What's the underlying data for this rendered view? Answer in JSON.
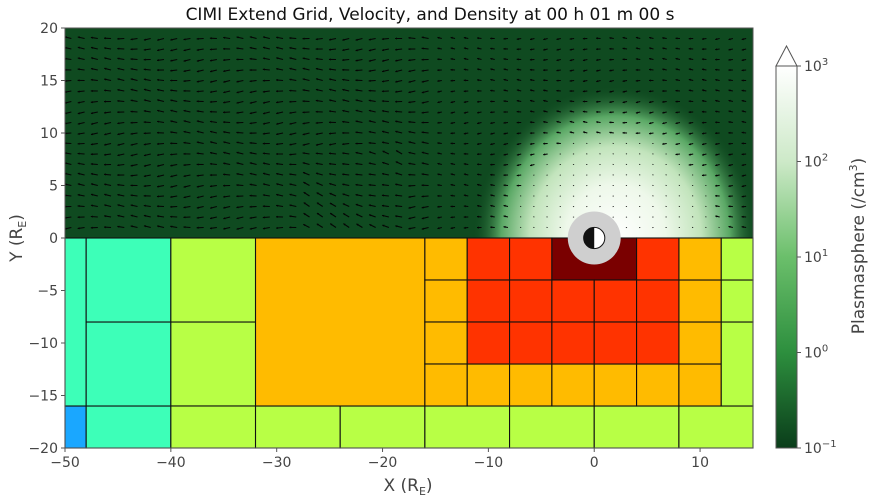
{
  "chart_data": {
    "type": "heatmap",
    "title": "CIMI Extend Grid, Velocity, and Density at 00 h 01 m 00 s",
    "xlabel": "X (R",
    "xlabel_sub": "E",
    "ylabel": "Y (R",
    "ylabel_sub": "E",
    "label_close": ")",
    "xlim": [
      -50,
      15
    ],
    "ylim": [
      -20,
      20
    ],
    "x_ticks": [
      -50,
      -40,
      -30,
      -20,
      -10,
      0,
      10
    ],
    "x_tick_labels": [
      "−50",
      "−40",
      "−30",
      "−20",
      "−10",
      "0",
      "10"
    ],
    "y_ticks": [
      -20,
      -15,
      -10,
      -5,
      0,
      5,
      10,
      15,
      20
    ],
    "y_tick_labels": [
      "−20",
      "−15",
      "−10",
      "−5",
      "0",
      "5",
      "10",
      "15",
      "20"
    ],
    "grid": false,
    "colorbar": {
      "label": "Plasmasphere (/cm",
      "label_sup": "3",
      "label_close": ")",
      "scale": "log",
      "range": [
        0.1,
        1000
      ],
      "extend": "max",
      "ticks": [
        {
          "value": 0.1,
          "base": "10",
          "exp": "−1"
        },
        {
          "value": 1,
          "base": "10",
          "exp": "0"
        },
        {
          "value": 10,
          "base": "10",
          "exp": "1"
        },
        {
          "value": 100,
          "base": "10",
          "exp": "2"
        },
        {
          "value": 1000,
          "base": "10",
          "exp": "3"
        }
      ],
      "colors": [
        "#0a3d1a",
        "#2d8f3e",
        "#6bbf6b",
        "#cde9c8",
        "#ffffff"
      ]
    },
    "density_panel": {
      "x_range": [
        -50,
        15
      ],
      "y_range": [
        0,
        20
      ],
      "background": "#0f4a20",
      "plasmasphere_center": [
        2,
        0
      ],
      "plasmasphere_radius": 10,
      "peak_density": 1000
    },
    "level_colors": {
      "0": "#1aa7ff",
      "1": "#3dffb8",
      "2": "#b8ff45",
      "3": "#ffbb00",
      "4": "#ff3300",
      "5": "#7a0000"
    },
    "grid_blocks": [
      {
        "x": [
          -50,
          -48
        ],
        "y": [
          -20,
          -16
        ],
        "level": 0
      },
      {
        "x": [
          -50,
          -48
        ],
        "y": [
          -16,
          0
        ],
        "level": 1
      },
      {
        "x": [
          -48,
          -40
        ],
        "y": [
          -20,
          -16
        ],
        "level": 1
      },
      {
        "x": [
          -48,
          -40
        ],
        "y": [
          -16,
          -8
        ],
        "level": 1
      },
      {
        "x": [
          -48,
          -40
        ],
        "y": [
          -8,
          0
        ],
        "level": 1
      },
      {
        "x": [
          -40,
          -32
        ],
        "y": [
          -16,
          -8
        ],
        "level": 2
      },
      {
        "x": [
          -40,
          -32
        ],
        "y": [
          -8,
          0
        ],
        "level": 2
      },
      {
        "x": [
          -40,
          -32
        ],
        "y": [
          -20,
          -16
        ],
        "level": 2
      },
      {
        "x": [
          -32,
          -24
        ],
        "y": [
          -20,
          -16
        ],
        "level": 2
      },
      {
        "x": [
          -24,
          -16
        ],
        "y": [
          -20,
          -16
        ],
        "level": 2
      },
      {
        "x": [
          -16,
          -8
        ],
        "y": [
          -20,
          -16
        ],
        "level": 2
      },
      {
        "x": [
          -8,
          0
        ],
        "y": [
          -20,
          -16
        ],
        "level": 2
      },
      {
        "x": [
          0,
          8
        ],
        "y": [
          -20,
          -16
        ],
        "level": 2
      },
      {
        "x": [
          8,
          15
        ],
        "y": [
          -20,
          -16
        ],
        "level": 2
      },
      {
        "x": [
          -32,
          -16
        ],
        "y": [
          -16,
          0
        ],
        "level": 3
      },
      {
        "x": [
          -16,
          -12
        ],
        "y": [
          -4,
          0
        ],
        "level": 3
      },
      {
        "x": [
          -16,
          -12
        ],
        "y": [
          -8,
          -4
        ],
        "level": 3
      },
      {
        "x": [
          -16,
          -12
        ],
        "y": [
          -12,
          -8
        ],
        "level": 3
      },
      {
        "x": [
          -16,
          -12
        ],
        "y": [
          -16,
          -12
        ],
        "level": 3
      },
      {
        "x": [
          -12,
          -8
        ],
        "y": [
          -16,
          -12
        ],
        "level": 3
      },
      {
        "x": [
          -8,
          -4
        ],
        "y": [
          -16,
          -12
        ],
        "level": 3
      },
      {
        "x": [
          -4,
          0
        ],
        "y": [
          -16,
          -12
        ],
        "level": 3
      },
      {
        "x": [
          0,
          4
        ],
        "y": [
          -16,
          -12
        ],
        "level": 3
      },
      {
        "x": [
          4,
          8
        ],
        "y": [
          -16,
          -12
        ],
        "level": 3
      },
      {
        "x": [
          8,
          12
        ],
        "y": [
          -16,
          -12
        ],
        "level": 3
      },
      {
        "x": [
          8,
          12
        ],
        "y": [
          -12,
          -8
        ],
        "level": 3
      },
      {
        "x": [
          8,
          12
        ],
        "y": [
          -8,
          -4
        ],
        "level": 3
      },
      {
        "x": [
          8,
          12
        ],
        "y": [
          -4,
          0
        ],
        "level": 3
      },
      {
        "x": [
          12,
          15
        ],
        "y": [
          -16,
          -8
        ],
        "level": 2
      },
      {
        "x": [
          12,
          15
        ],
        "y": [
          -8,
          -4
        ],
        "level": 2
      },
      {
        "x": [
          12,
          15
        ],
        "y": [
          -4,
          0
        ],
        "level": 2
      },
      {
        "x": [
          -12,
          -8
        ],
        "y": [
          -4,
          0
        ],
        "level": 4
      },
      {
        "x": [
          -8,
          -4
        ],
        "y": [
          -4,
          0
        ],
        "level": 4
      },
      {
        "x": [
          -4,
          4
        ],
        "y": [
          -4,
          0
        ],
        "level": 5
      },
      {
        "x": [
          4,
          8
        ],
        "y": [
          -4,
          0
        ],
        "level": 4
      },
      {
        "x": [
          -12,
          -8
        ],
        "y": [
          -8,
          -4
        ],
        "level": 4
      },
      {
        "x": [
          -8,
          -4
        ],
        "y": [
          -8,
          -4
        ],
        "level": 4
      },
      {
        "x": [
          -4,
          0
        ],
        "y": [
          -8,
          -4
        ],
        "level": 4
      },
      {
        "x": [
          0,
          4
        ],
        "y": [
          -8,
          -4
        ],
        "level": 4
      },
      {
        "x": [
          4,
          8
        ],
        "y": [
          -8,
          -4
        ],
        "level": 4
      },
      {
        "x": [
          -12,
          -8
        ],
        "y": [
          -12,
          -8
        ],
        "level": 4
      },
      {
        "x": [
          -8,
          -4
        ],
        "y": [
          -12,
          -8
        ],
        "level": 4
      },
      {
        "x": [
          -4,
          0
        ],
        "y": [
          -12,
          -8
        ],
        "level": 4
      },
      {
        "x": [
          0,
          4
        ],
        "y": [
          -12,
          -8
        ],
        "level": 4
      },
      {
        "x": [
          4,
          8
        ],
        "y": [
          -12,
          -8
        ],
        "level": 4
      }
    ],
    "earth": {
      "x": 0,
      "y": 0,
      "outer_radius": 2.5,
      "inner_radius": 1,
      "ring_color": "#cfcfcf"
    }
  }
}
